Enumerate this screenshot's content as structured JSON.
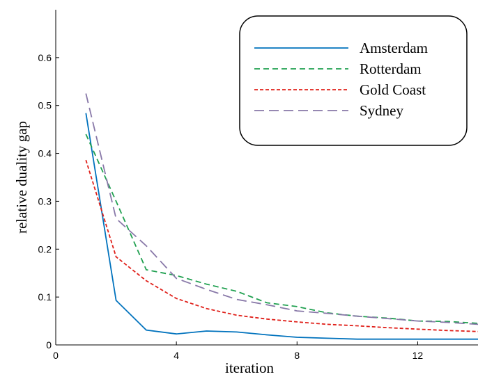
{
  "chart_data": {
    "type": "line",
    "title": "",
    "xlabel": "iteration",
    "ylabel": "relative duality gap",
    "xlim": [
      0,
      14
    ],
    "ylim": [
      0,
      0.7
    ],
    "xticks": [
      0,
      4,
      8,
      12
    ],
    "xtick_labels": [
      "0",
      "4",
      "8",
      "12"
    ],
    "yticks": [
      0,
      0.1,
      0.2,
      0.3,
      0.4,
      0.5,
      0.6
    ],
    "ytick_labels": [
      "0",
      "0.1",
      "0.2",
      "0.3",
      "0.4",
      "0.5",
      "0.6"
    ],
    "grid": false,
    "legend_position": "top-right",
    "x": [
      1,
      2,
      3,
      4,
      5,
      6,
      7,
      8,
      9,
      10,
      11,
      12,
      13,
      14
    ],
    "series": [
      {
        "name": "Amsterdam",
        "color": "#0072BD",
        "dash": "solid",
        "values": [
          0.484,
          0.093,
          0.031,
          0.023,
          0.029,
          0.027,
          0.021,
          0.016,
          0.014,
          0.012,
          0.012,
          0.012,
          0.012,
          0.012
        ]
      },
      {
        "name": "Rotterdam",
        "color": "#20A050",
        "dash": "dashed",
        "values": [
          0.44,
          0.3,
          0.157,
          0.145,
          0.127,
          0.112,
          0.088,
          0.08,
          0.067,
          0.06,
          0.056,
          0.05,
          0.049,
          0.045
        ]
      },
      {
        "name": "Gold Coast",
        "color": "#E0201A",
        "dash": "dotted",
        "values": [
          0.386,
          0.184,
          0.134,
          0.097,
          0.076,
          0.062,
          0.054,
          0.048,
          0.043,
          0.04,
          0.036,
          0.033,
          0.03,
          0.028
        ]
      },
      {
        "name": "Sydney",
        "color": "#8878A8",
        "dash": "longdash",
        "values": [
          0.525,
          0.264,
          0.207,
          0.139,
          0.116,
          0.095,
          0.084,
          0.071,
          0.066,
          0.06,
          0.055,
          0.05,
          0.047,
          0.043
        ]
      }
    ]
  }
}
